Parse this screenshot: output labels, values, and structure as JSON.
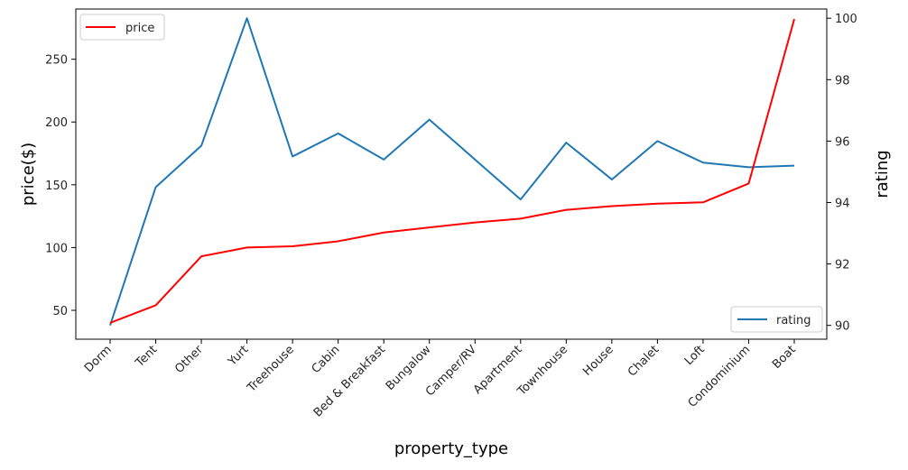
{
  "chart_data": {
    "type": "line",
    "title": "",
    "xlabel": "property_type",
    "ylabel": "price($)",
    "y2label": "rating",
    "categories": [
      "Dorm",
      "Tent",
      "Other",
      "Yurt",
      "Treehouse",
      "Cabin",
      "Bed & Breakfast",
      "Bungalow",
      "Camper/RV",
      "Apartment",
      "Townhouse",
      "House",
      "Chalet",
      "Loft",
      "Condominium",
      "Boat"
    ],
    "ylim": [
      27,
      290
    ],
    "y2lim": [
      89.55,
      100.3
    ],
    "yticks": [
      50,
      100,
      150,
      200,
      250
    ],
    "y2ticks": [
      90,
      92,
      94,
      96,
      98,
      100
    ],
    "grid": false,
    "series": [
      {
        "name": "price",
        "axis": "left",
        "color": "#ff0000",
        "legend_position": "upper-left",
        "values": [
          40,
          54,
          93,
          100,
          101,
          105,
          112,
          116,
          120,
          123,
          130,
          133,
          135,
          136,
          151,
          282
        ]
      },
      {
        "name": "rating",
        "axis": "right",
        "color": "#1f77b4",
        "legend_position": "lower-right",
        "values": [
          90.0,
          94.5,
          95.85,
          100.0,
          95.5,
          96.25,
          95.4,
          96.7,
          95.4,
          94.1,
          95.95,
          94.75,
          96.0,
          95.3,
          95.15,
          95.2
        ]
      }
    ]
  }
}
